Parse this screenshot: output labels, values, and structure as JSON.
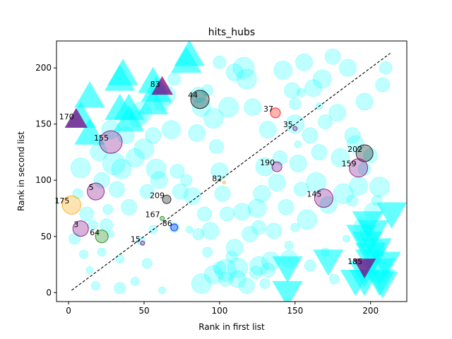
{
  "chart_data": {
    "type": "scatter",
    "title": "hits_hubs",
    "xlabel": "Rank in first list",
    "ylabel": "Rank in second list",
    "xlim": [
      -8,
      224
    ],
    "ylim": [
      -8,
      224
    ],
    "xticks": [
      0,
      50,
      100,
      150,
      200
    ],
    "yticks": [
      0,
      50,
      100,
      150,
      200
    ],
    "grid": false,
    "diagonal": {
      "from": [
        2,
        2
      ],
      "to": [
        213,
        213
      ],
      "style": "dashed",
      "color": "#000000"
    },
    "colors": {
      "cyan": "#00ffff",
      "purple": "#800080",
      "orange": "#ffa500",
      "green": "#008000",
      "red": "#ff0000",
      "gray": "#808080",
      "blue": "#0000ff",
      "white": "#ffffff",
      "black": "#000000"
    },
    "background_circles": [
      [
        8,
        111,
        14
      ],
      [
        12,
        70,
        10
      ],
      [
        20,
        125,
        12
      ],
      [
        22,
        100,
        11
      ],
      [
        25,
        60,
        9
      ],
      [
        28,
        145,
        13
      ],
      [
        30,
        115,
        16
      ],
      [
        32,
        92,
        11
      ],
      [
        35,
        110,
        14
      ],
      [
        38,
        140,
        12
      ],
      [
        40,
        76,
        11
      ],
      [
        44,
        120,
        13
      ],
      [
        46,
        155,
        12
      ],
      [
        48,
        160,
        15
      ],
      [
        50,
        128,
        14
      ],
      [
        52,
        90,
        10
      ],
      [
        56,
        140,
        11
      ],
      [
        58,
        110,
        14
      ],
      [
        60,
        100,
        12
      ],
      [
        62,
        170,
        12
      ],
      [
        64,
        176,
        14
      ],
      [
        68,
        145,
        13
      ],
      [
        72,
        108,
        10
      ],
      [
        74,
        90,
        11
      ],
      [
        78,
        100,
        8
      ],
      [
        82,
        86,
        12
      ],
      [
        85,
        142,
        12
      ],
      [
        88,
        165,
        13
      ],
      [
        90,
        70,
        10
      ],
      [
        94,
        55,
        12
      ],
      [
        96,
        155,
        14
      ],
      [
        98,
        130,
        10
      ],
      [
        100,
        108,
        12
      ],
      [
        102,
        88,
        11
      ],
      [
        105,
        70,
        10
      ],
      [
        106,
        165,
        14
      ],
      [
        110,
        40,
        12
      ],
      [
        112,
        22,
        14
      ],
      [
        115,
        72,
        12
      ],
      [
        116,
        200,
        15
      ],
      [
        118,
        190,
        14
      ],
      [
        120,
        52,
        11
      ],
      [
        122,
        165,
        12
      ],
      [
        125,
        75,
        13
      ],
      [
        126,
        58,
        10
      ],
      [
        128,
        88,
        12
      ],
      [
        130,
        112,
        13
      ],
      [
        132,
        145,
        12
      ],
      [
        134,
        28,
        13
      ],
      [
        136,
        55,
        11
      ],
      [
        138,
        98,
        12
      ],
      [
        140,
        120,
        10
      ],
      [
        142,
        198,
        13
      ],
      [
        144,
        76,
        11
      ],
      [
        146,
        30,
        12
      ],
      [
        148,
        180,
        11
      ],
      [
        150,
        150,
        13
      ],
      [
        152,
        115,
        12
      ],
      [
        154,
        92,
        10
      ],
      [
        156,
        205,
        12
      ],
      [
        158,
        65,
        14
      ],
      [
        160,
        140,
        11
      ],
      [
        162,
        182,
        12
      ],
      [
        164,
        98,
        14
      ],
      [
        166,
        125,
        11
      ],
      [
        168,
        190,
        13
      ],
      [
        170,
        152,
        10
      ],
      [
        172,
        78,
        12
      ],
      [
        175,
        210,
        11
      ],
      [
        178,
        160,
        12
      ],
      [
        180,
        120,
        13
      ],
      [
        182,
        88,
        14
      ],
      [
        185,
        200,
        12
      ],
      [
        188,
        140,
        11
      ],
      [
        190,
        132,
        12
      ],
      [
        192,
        95,
        13
      ],
      [
        194,
        60,
        10
      ],
      [
        196,
        170,
        12
      ],
      [
        198,
        52,
        11
      ],
      [
        200,
        122,
        10
      ],
      [
        202,
        72,
        13
      ],
      [
        204,
        40,
        12
      ],
      [
        206,
        94,
        14
      ],
      [
        208,
        185,
        10
      ],
      [
        210,
        200,
        9
      ],
      [
        4,
        48,
        8
      ],
      [
        6,
        88,
        7
      ],
      [
        10,
        34,
        6
      ],
      [
        14,
        20,
        5
      ],
      [
        16,
        60,
        7
      ],
      [
        18,
        6,
        6
      ],
      [
        22,
        36,
        6
      ],
      [
        26,
        74,
        7
      ],
      [
        34,
        4,
        8
      ],
      [
        44,
        10,
        6
      ],
      [
        52,
        26,
        7
      ],
      [
        56,
        56,
        6
      ],
      [
        62,
        2,
        5
      ],
      [
        70,
        58,
        7
      ],
      [
        80,
        56,
        5
      ],
      [
        86,
        52,
        8
      ],
      [
        92,
        36,
        7
      ],
      [
        100,
        22,
        9
      ],
      [
        104,
        12,
        10
      ],
      [
        108,
        32,
        8
      ],
      [
        124,
        18,
        9
      ],
      [
        130,
        8,
        7
      ],
      [
        146,
        42,
        6
      ],
      [
        150,
        58,
        6
      ],
      [
        160,
        24,
        8
      ],
      [
        170,
        36,
        6
      ],
      [
        176,
        12,
        7
      ],
      [
        184,
        48,
        5
      ],
      [
        188,
        82,
        8
      ],
      [
        196,
        110,
        9
      ],
      [
        204,
        82,
        7
      ],
      [
        88,
        8,
        14
      ],
      [
        96,
        16,
        13
      ],
      [
        104,
        20,
        15
      ],
      [
        112,
        12,
        12
      ],
      [
        118,
        6,
        11
      ],
      [
        126,
        24,
        13
      ],
      [
        132,
        20,
        10
      ],
      [
        48,
        46,
        6
      ],
      [
        28,
        52,
        5
      ],
      [
        34,
        30,
        6
      ],
      [
        150,
        168,
        8
      ],
      [
        152,
        132,
        5
      ],
      [
        154,
        178,
        6
      ],
      [
        166,
        166,
        5
      ],
      [
        92,
        180,
        8
      ],
      [
        100,
        205,
        9
      ],
      [
        110,
        196,
        12
      ],
      [
        86,
        176,
        11
      ],
      [
        70,
        190,
        9
      ]
    ],
    "up_triangles": [
      [
        8,
        155
      ],
      [
        14,
        173
      ],
      [
        14,
        140
      ],
      [
        34,
        188
      ],
      [
        36,
        193
      ],
      [
        34,
        162
      ],
      [
        40,
        162
      ],
      [
        40,
        152
      ],
      [
        56,
        167
      ],
      [
        58,
        178
      ],
      [
        56,
        186
      ],
      [
        78,
        204
      ],
      [
        80,
        210
      ]
    ],
    "down_triangles": [
      [
        145,
        24
      ],
      [
        145,
        2
      ],
      [
        172,
        30
      ],
      [
        190,
        12
      ],
      [
        196,
        12
      ],
      [
        194,
        52
      ],
      [
        198,
        46
      ],
      [
        200,
        36
      ],
      [
        200,
        30
      ],
      [
        202,
        56
      ],
      [
        204,
        40
      ],
      [
        206,
        22
      ],
      [
        206,
        12
      ],
      [
        208,
        10
      ],
      [
        210,
        28
      ],
      [
        214,
        72
      ],
      [
        198,
        64
      ],
      [
        196,
        20
      ]
    ],
    "highlighted": [
      {
        "label": "170",
        "x": 5,
        "y": 153,
        "shape": "triangle-up",
        "color": "purple",
        "size": 18
      },
      {
        "label": "83",
        "x": 62,
        "y": 182,
        "shape": "triangle-up",
        "color": "purple",
        "size": 17
      },
      {
        "label": "185",
        "x": 196,
        "y": 24,
        "shape": "triangle-down",
        "color": "purple",
        "size": 18
      },
      {
        "label": "175",
        "x": 2,
        "y": 78,
        "shape": "circle",
        "color": "orange",
        "size": 13
      },
      {
        "label": "5",
        "x": 18,
        "y": 90,
        "shape": "circle",
        "color": "purple",
        "size": 12
      },
      {
        "label": "3",
        "x": 8,
        "y": 57,
        "shape": "circle",
        "color": "purple",
        "size": 11
      },
      {
        "label": "64",
        "x": 22,
        "y": 50,
        "shape": "circle",
        "color": "green",
        "size": 9
      },
      {
        "label": "155",
        "x": 28,
        "y": 134,
        "shape": "circle",
        "color": "purple",
        "size": 16
      },
      {
        "label": "44",
        "x": 87,
        "y": 172,
        "shape": "circle",
        "color": "black",
        "size": 13
      },
      {
        "label": "37",
        "x": 137,
        "y": 160,
        "shape": "circle",
        "color": "red",
        "size": 7
      },
      {
        "label": "35",
        "x": 150,
        "y": 146,
        "shape": "circle",
        "color": "purple",
        "size": 3
      },
      {
        "label": "202",
        "x": 196,
        "y": 124,
        "shape": "circle",
        "color": "black",
        "size": 12
      },
      {
        "label": "190",
        "x": 138,
        "y": 112,
        "shape": "circle",
        "color": "purple",
        "size": 7
      },
      {
        "label": "159",
        "x": 192,
        "y": 111,
        "shape": "circle",
        "color": "purple",
        "size": 13
      },
      {
        "label": "82",
        "x": 103,
        "y": 98,
        "shape": "circle",
        "color": "orange",
        "size": 2
      },
      {
        "label": "145",
        "x": 169,
        "y": 84,
        "shape": "circle",
        "color": "purple",
        "size": 13
      },
      {
        "label": "209",
        "x": 65,
        "y": 83,
        "shape": "circle",
        "color": "black",
        "size": 6
      },
      {
        "label": "167",
        "x": 62,
        "y": 66,
        "shape": "circle",
        "color": "green",
        "size": 3
      },
      {
        "label": "86",
        "x": 70,
        "y": 58,
        "shape": "circle",
        "color": "blue",
        "size": 5
      },
      {
        "label": "15",
        "x": 49,
        "y": 44,
        "shape": "circle",
        "color": "purple",
        "size": 3
      }
    ]
  }
}
